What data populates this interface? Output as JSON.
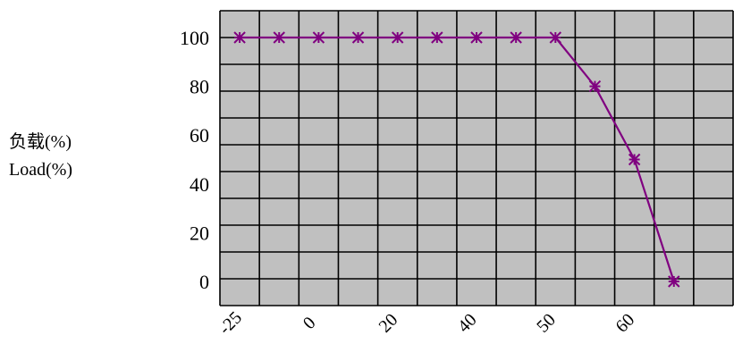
{
  "chart_data": {
    "type": "line",
    "ylabel_lines": [
      "负载(%)",
      "Load(%)"
    ],
    "xlabel": "",
    "title": "",
    "y_ticks": [
      0,
      20,
      40,
      60,
      80,
      100
    ],
    "ylim": [
      0,
      100
    ],
    "x_tick_labels": [
      "-25",
      "0",
      "20",
      "40",
      "50",
      "60"
    ],
    "grid": true,
    "legend": "none",
    "series": [
      {
        "color": "#800080",
        "marker": "asterisk",
        "points": [
          {
            "x": 0.5,
            "y": 100
          },
          {
            "x": 1.5,
            "y": 100
          },
          {
            "x": 2.5,
            "y": 100
          },
          {
            "x": 3.5,
            "y": 100
          },
          {
            "x": 4.5,
            "y": 100
          },
          {
            "x": 5.5,
            "y": 100
          },
          {
            "x": 6.5,
            "y": 100
          },
          {
            "x": 7.5,
            "y": 100
          },
          {
            "x": 8.5,
            "y": 100
          },
          {
            "x": 9.5,
            "y": 80
          },
          {
            "x": 10.5,
            "y": 50
          },
          {
            "x": 11.5,
            "y": 0
          }
        ]
      }
    ],
    "x_cells": 13,
    "y_cells": 11,
    "plot_background": "#c0c0c0",
    "grid_color": "#000000"
  }
}
